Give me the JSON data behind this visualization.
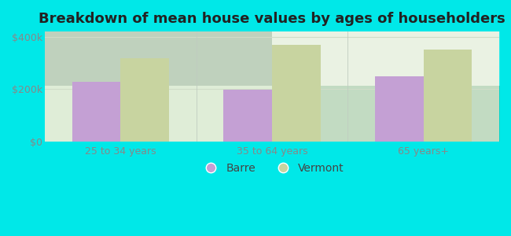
{
  "categories": [
    "25 to 34 years",
    "35 to 64 years",
    "65 years+"
  ],
  "barre_values": [
    228000,
    197000,
    248000
  ],
  "vermont_values": [
    318000,
    370000,
    350000
  ],
  "barre_color": "#c4a0d4",
  "vermont_color": "#c8d4a0",
  "background_color": "#00e8e8",
  "plot_bg_top_left": "#d8ecd0",
  "plot_bg_bottom_right": "#f4f8f0",
  "title": "Breakdown of mean house values by ages of householders",
  "title_fontsize": 13,
  "ylim": [
    0,
    420000
  ],
  "yticks": [
    0,
    200000,
    400000
  ],
  "ytick_labels": [
    "$0",
    "$200k",
    "$400k"
  ],
  "legend_labels": [
    "Barre",
    "Vermont"
  ],
  "bar_width": 0.32,
  "grid_color": "#e0e8dc",
  "tick_color": "#888888"
}
